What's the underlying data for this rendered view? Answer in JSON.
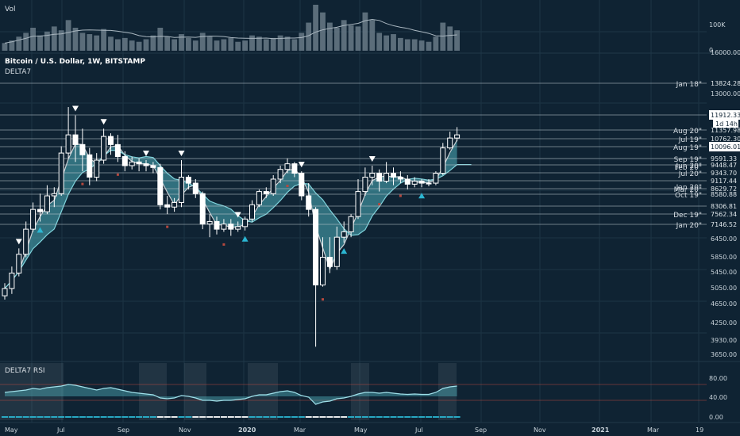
{
  "colors": {
    "background": "#0f2333",
    "grid": "#1c3445",
    "band_fill": "#4fb0bb",
    "band_line": "#7fd3dc",
    "band_grey": "#c9cfd4",
    "candle": "#ffffff",
    "signal_blue": "#2bb6d2",
    "signal_dot": "#b5483e",
    "label_box": "#ffffff",
    "rsi_line": "#9fe0ea"
  },
  "header": {
    "symbol_line": "Bitcoin / U.S. Dollar, 1W, BITSTAMP",
    "indicator_name": "DELTA7"
  },
  "volume_pane": {
    "label": "Vol",
    "scale_labels": [
      "100K",
      "0"
    ]
  },
  "rsi_pane": {
    "label": "DELTA7 RSI",
    "scale_labels": [
      "80.00",
      "40.00",
      "0.00"
    ]
  },
  "price_axis": {
    "tick_labels": [
      "16000.00",
      "13000.00",
      "6450.00",
      "5850.00",
      "5450.00",
      "5050.00",
      "4650.00",
      "4250.00",
      "3930.00",
      "3650.00"
    ]
  },
  "x_axis": {
    "tick_labels": [
      "May",
      "Jul",
      "Sep",
      "Nov",
      "2020",
      "Mar",
      "May",
      "Jul",
      "Sep",
      "Nov",
      "2021",
      "Mar",
      "19"
    ]
  },
  "level_lines": [
    {
      "price_label": "13824.28",
      "tag": "Jan 18\"",
      "boxed": false
    },
    {
      "price_label": "11912.33",
      "tag": "",
      "boxed": true
    },
    {
      "price_label": "11357.98",
      "tag": "Aug 20\"",
      "boxed": false
    },
    {
      "price_label": "10762.30",
      "tag": "Jul 19\"",
      "boxed": false
    },
    {
      "price_label": "10096.01",
      "tag": "Aug 19\"",
      "boxed": true
    },
    {
      "price_label": "9591.33",
      "tag": "Sep 19\"",
      "boxed": false
    },
    {
      "price_label": "9448.47",
      "tag": "Jun 20\"",
      "boxed": false
    },
    {
      "price_label": "9343.70",
      "tag": "Jul 20\"",
      "boxed": false
    },
    {
      "price_label": "9117.44",
      "tag": "",
      "boxed": false
    },
    {
      "price_label": "8629.72",
      "tag": "Mar 20\"",
      "boxed": false
    },
    {
      "price_label": "8580.88",
      "tag": "Oct 19\"",
      "boxed": false
    },
    {
      "price_label": "8306.81",
      "tag": "",
      "boxed": false
    },
    {
      "price_label": "7562.34",
      "tag": "Dec 19\"",
      "boxed": false
    },
    {
      "price_label": "7146.52",
      "tag": "Jan 20\"",
      "boxed": false
    }
  ],
  "overlay_labels": {
    "countdown": "1d 14h",
    "extra_tags": [
      "Feb 20\"",
      "Jan 20\""
    ]
  },
  "chart_data": {
    "type": "candlestick",
    "title": "Bitcoin / U.S. Dollar, 1W, BITSTAMP",
    "interval": "1W",
    "ylim": [
      3650,
      16000
    ],
    "y_scale": "log",
    "x_range": [
      "2019-04",
      "2021-04"
    ],
    "weekly_candles": [
      {
        "o": 5050,
        "c": 5250,
        "h": 5400,
        "l": 4950
      },
      {
        "o": 5250,
        "c": 5700,
        "h": 5900,
        "l": 5100
      },
      {
        "o": 5700,
        "c": 6300,
        "h": 6500,
        "l": 5600
      },
      {
        "o": 6300,
        "c": 7200,
        "h": 7500,
        "l": 6200
      },
      {
        "o": 7200,
        "c": 8000,
        "h": 8300,
        "l": 7100
      },
      {
        "o": 8000,
        "c": 7900,
        "h": 8700,
        "l": 7500
      },
      {
        "o": 7900,
        "c": 8600,
        "h": 9100,
        "l": 7800
      },
      {
        "o": 8600,
        "c": 8700,
        "h": 9000,
        "l": 8100
      },
      {
        "o": 8700,
        "c": 10800,
        "h": 11200,
        "l": 8600
      },
      {
        "o": 10800,
        "c": 11900,
        "h": 13800,
        "l": 10500
      },
      {
        "o": 11900,
        "c": 11300,
        "h": 13200,
        "l": 10300
      },
      {
        "o": 11300,
        "c": 10700,
        "h": 12300,
        "l": 9800
      },
      {
        "o": 10700,
        "c": 9500,
        "h": 11100,
        "l": 9100
      },
      {
        "o": 9500,
        "c": 10400,
        "h": 10800,
        "l": 9300
      },
      {
        "o": 10400,
        "c": 11800,
        "h": 12300,
        "l": 10200
      },
      {
        "o": 11800,
        "c": 11300,
        "h": 12000,
        "l": 10700
      },
      {
        "o": 11300,
        "c": 10600,
        "h": 11900,
        "l": 10300
      },
      {
        "o": 10600,
        "c": 10100,
        "h": 10900,
        "l": 9800
      },
      {
        "o": 10100,
        "c": 10300,
        "h": 10600,
        "l": 9900
      },
      {
        "o": 10300,
        "c": 10200,
        "h": 10500,
        "l": 9800
      },
      {
        "o": 10200,
        "c": 10100,
        "h": 10400,
        "l": 9800
      },
      {
        "o": 10100,
        "c": 10000,
        "h": 10300,
        "l": 9700
      },
      {
        "o": 10000,
        "c": 8200,
        "h": 10200,
        "l": 8000
      },
      {
        "o": 8200,
        "c": 8100,
        "h": 8600,
        "l": 7800
      },
      {
        "o": 8100,
        "c": 8300,
        "h": 8500,
        "l": 7900
      },
      {
        "o": 8300,
        "c": 9500,
        "h": 10400,
        "l": 8100
      },
      {
        "o": 9500,
        "c": 9200,
        "h": 9600,
        "l": 8900
      },
      {
        "o": 9200,
        "c": 8700,
        "h": 9400,
        "l": 8500
      },
      {
        "o": 8700,
        "c": 7400,
        "h": 8800,
        "l": 7200
      },
      {
        "o": 7400,
        "c": 7500,
        "h": 7800,
        "l": 6900
      },
      {
        "o": 7500,
        "c": 7200,
        "h": 7700,
        "l": 7000
      },
      {
        "o": 7200,
        "c": 7400,
        "h": 7600,
        "l": 7100
      },
      {
        "o": 7400,
        "c": 7200,
        "h": 7600,
        "l": 6950
      },
      {
        "o": 7200,
        "c": 7300,
        "h": 7500,
        "l": 7100
      },
      {
        "o": 7300,
        "c": 7600,
        "h": 7700,
        "l": 7150
      },
      {
        "o": 7600,
        "c": 8200,
        "h": 8400,
        "l": 7500
      },
      {
        "o": 8200,
        "c": 8800,
        "h": 8900,
        "l": 8100
      },
      {
        "o": 8800,
        "c": 8700,
        "h": 9000,
        "l": 8500
      },
      {
        "o": 8700,
        "c": 9400,
        "h": 9600,
        "l": 8600
      },
      {
        "o": 9400,
        "c": 9900,
        "h": 10100,
        "l": 9200
      },
      {
        "o": 9900,
        "c": 10200,
        "h": 10500,
        "l": 9700
      },
      {
        "o": 10200,
        "c": 9700,
        "h": 10300,
        "l": 9500
      },
      {
        "o": 9700,
        "c": 8600,
        "h": 9800,
        "l": 8400
      },
      {
        "o": 8600,
        "c": 8000,
        "h": 9200,
        "l": 7700
      },
      {
        "o": 8000,
        "c": 5350,
        "h": 8100,
        "l": 3850
      },
      {
        "o": 5350,
        "c": 6200,
        "h": 6900,
        "l": 5300
      },
      {
        "o": 6200,
        "c": 5900,
        "h": 6900,
        "l": 5700
      },
      {
        "o": 5900,
        "c": 6900,
        "h": 7300,
        "l": 5800
      },
      {
        "o": 6900,
        "c": 7100,
        "h": 7500,
        "l": 6700
      },
      {
        "o": 7100,
        "c": 7700,
        "h": 7800,
        "l": 6900
      },
      {
        "o": 7700,
        "c": 8800,
        "h": 9400,
        "l": 7600
      },
      {
        "o": 8800,
        "c": 9500,
        "h": 10000,
        "l": 8600
      },
      {
        "o": 9500,
        "c": 9700,
        "h": 10100,
        "l": 9100
      },
      {
        "o": 9700,
        "c": 9300,
        "h": 9900,
        "l": 8800
      },
      {
        "o": 9300,
        "c": 9700,
        "h": 10300,
        "l": 9200
      },
      {
        "o": 9700,
        "c": 9500,
        "h": 10000,
        "l": 9100
      },
      {
        "o": 9500,
        "c": 9400,
        "h": 9800,
        "l": 9200
      },
      {
        "o": 9400,
        "c": 9150,
        "h": 9600,
        "l": 8900
      },
      {
        "o": 9150,
        "c": 9300,
        "h": 9500,
        "l": 9000
      },
      {
        "o": 9300,
        "c": 9200,
        "h": 9400,
        "l": 9000
      },
      {
        "o": 9200,
        "c": 9200,
        "h": 9400,
        "l": 9050
      },
      {
        "o": 9200,
        "c": 9700,
        "h": 9800,
        "l": 9100
      },
      {
        "o": 9700,
        "c": 11100,
        "h": 11400,
        "l": 9600
      },
      {
        "o": 11100,
        "c": 11700,
        "h": 12100,
        "l": 11000
      },
      {
        "o": 11700,
        "c": 11900,
        "h": 12400,
        "l": 11500
      }
    ],
    "volume": [
      30,
      40,
      55,
      70,
      90,
      60,
      75,
      95,
      80,
      120,
      90,
      70,
      65,
      60,
      85,
      55,
      45,
      50,
      40,
      35,
      45,
      60,
      90,
      55,
      45,
      65,
      50,
      40,
      70,
      55,
      40,
      45,
      50,
      35,
      40,
      60,
      55,
      45,
      50,
      60,
      55,
      45,
      70,
      110,
      180,
      150,
      110,
      90,
      120,
      100,
      95,
      150,
      120,
      70,
      60,
      65,
      50,
      45,
      45,
      40,
      35,
      55,
      110,
      95,
      80
    ],
    "rsi": [
      60,
      62,
      64,
      66,
      70,
      68,
      72,
      74,
      76,
      80,
      78,
      74,
      70,
      66,
      70,
      72,
      68,
      64,
      60,
      58,
      56,
      54,
      46,
      44,
      46,
      52,
      50,
      46,
      40,
      40,
      38,
      40,
      40,
      42,
      44,
      50,
      54,
      54,
      58,
      62,
      64,
      60,
      52,
      48,
      30,
      36,
      38,
      44,
      46,
      50,
      56,
      60,
      60,
      58,
      60,
      58,
      56,
      55,
      56,
      55,
      55,
      60,
      70,
      74,
      76
    ],
    "rsi_levels": [
      80,
      40,
      0
    ]
  }
}
